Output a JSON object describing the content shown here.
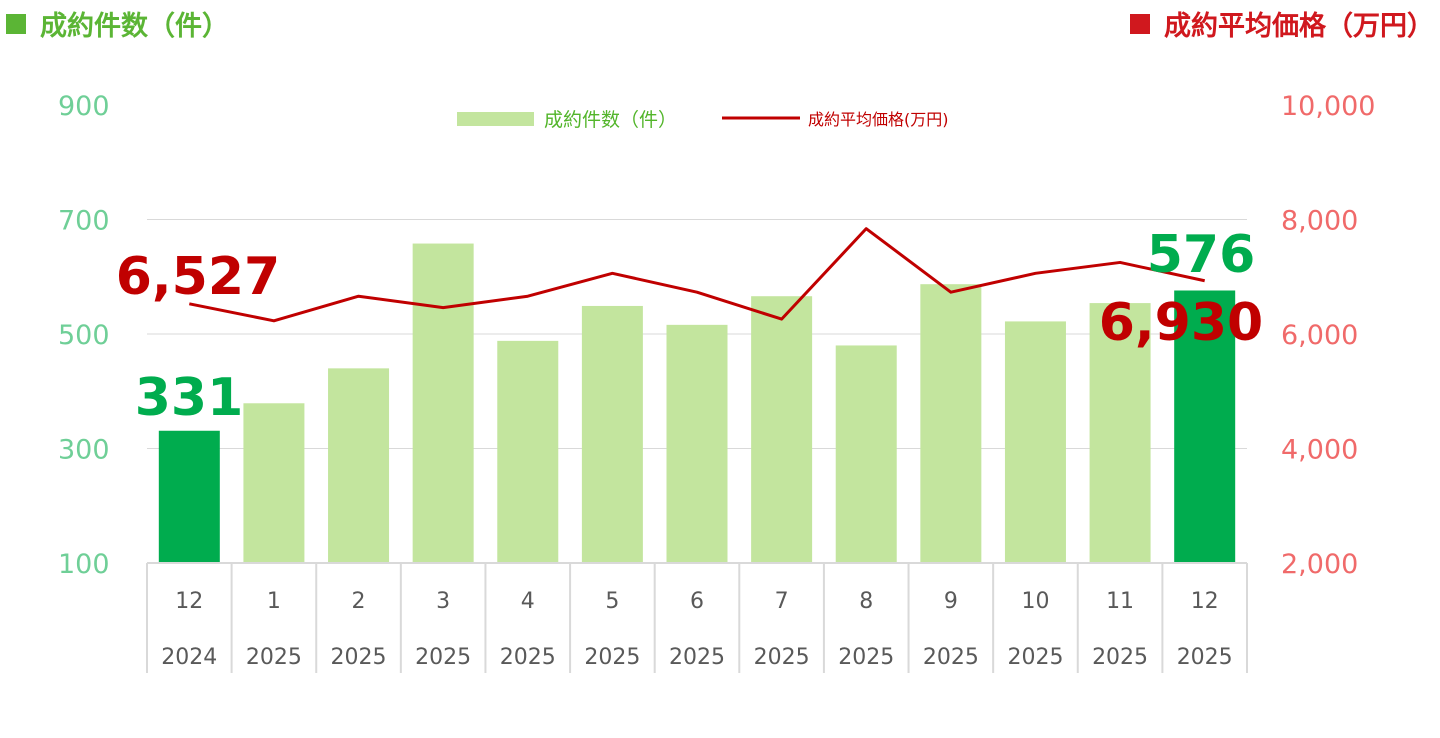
{
  "header": {
    "left_title": "成約件数（件）",
    "right_title": "成約平均価格（万円）"
  },
  "colors": {
    "bar_normal": "#c3e59e",
    "bar_highlight": "#00ac4e",
    "line": "#c00000",
    "left_axis": "#6fcf97",
    "right_axis": "#f06a6a"
  },
  "chart_data": {
    "type": "bar+line",
    "categories": [
      {
        "month": "12",
        "year": "2024"
      },
      {
        "month": "1",
        "year": "2025"
      },
      {
        "month": "2",
        "year": "2025"
      },
      {
        "month": "3",
        "year": "2025"
      },
      {
        "month": "4",
        "year": "2025"
      },
      {
        "month": "5",
        "year": "2025"
      },
      {
        "month": "6",
        "year": "2025"
      },
      {
        "month": "7",
        "year": "2025"
      },
      {
        "month": "8",
        "year": "2025"
      },
      {
        "month": "9",
        "year": "2025"
      },
      {
        "month": "10",
        "year": "2025"
      },
      {
        "month": "11",
        "year": "2025"
      },
      {
        "month": "12",
        "year": "2025"
      }
    ],
    "series": [
      {
        "name": "成約件数（件）",
        "type": "bar",
        "axis": "left",
        "values": [
          331,
          379,
          440,
          658,
          488,
          549,
          516,
          566,
          480,
          587,
          522,
          554,
          576
        ],
        "highlight": [
          true,
          false,
          false,
          false,
          false,
          false,
          false,
          false,
          false,
          false,
          false,
          false,
          true
        ]
      },
      {
        "name": "成約平均価格(万円)",
        "type": "line",
        "axis": "right",
        "values": [
          6527,
          6230,
          6660,
          6460,
          6660,
          7060,
          6730,
          6260,
          7840,
          6730,
          7060,
          7250,
          6930
        ]
      }
    ],
    "left_axis": {
      "ylim": [
        100,
        900
      ],
      "ticks": [
        "900",
        "700",
        "500",
        "300",
        "100"
      ]
    },
    "right_axis": {
      "ylim": [
        2000,
        10000
      ],
      "ticks": [
        "10,000",
        "8,000",
        "6,000",
        "4,000",
        "2,000"
      ]
    },
    "grid": true,
    "legend": "top-center",
    "annotations": {
      "first_bar": "331",
      "last_bar": "576",
      "first_line": "6,527",
      "last_line": "6,930"
    }
  }
}
